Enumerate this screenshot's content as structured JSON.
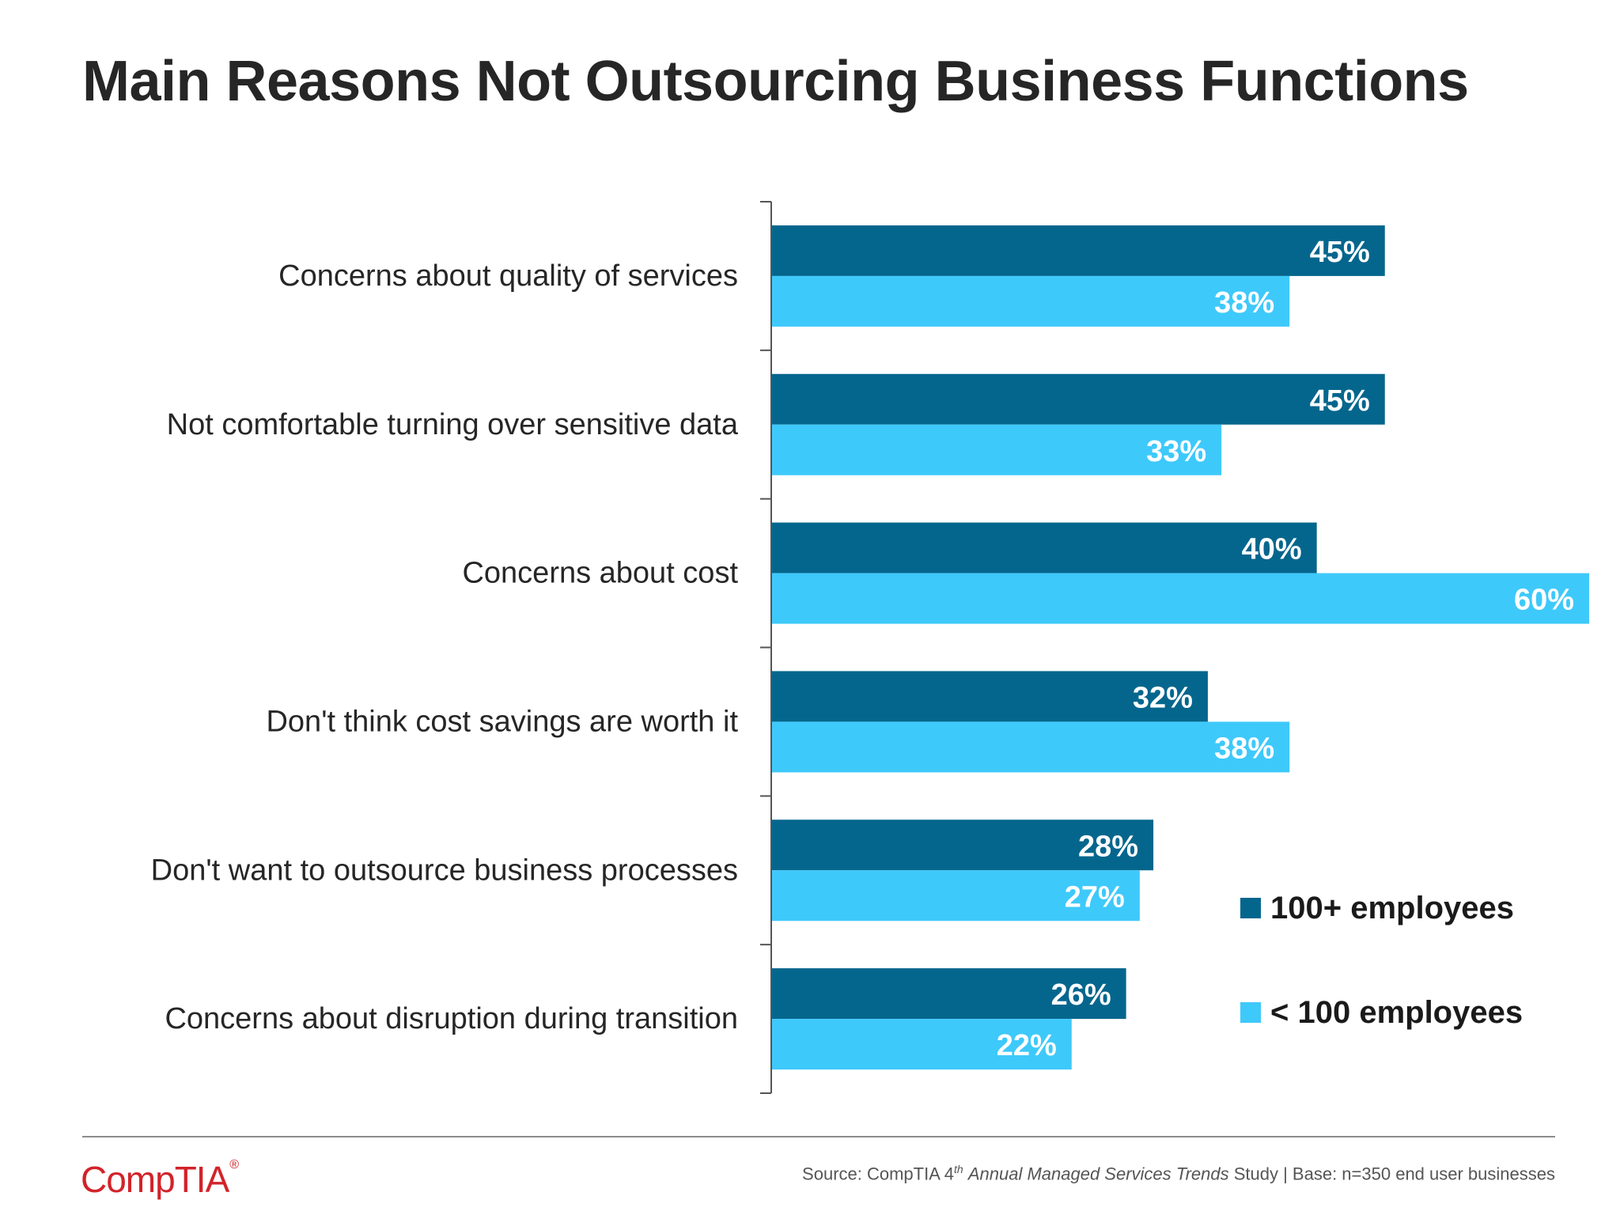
{
  "title": "Main Reasons Not Outsourcing Business Functions",
  "colors": {
    "series_large": "#05668d",
    "series_small": "#3ec9fb",
    "axis": "#555555",
    "brand": "#d2232a"
  },
  "legend": {
    "large_label": "100+ employees",
    "small_label": "< 100 employees"
  },
  "source": {
    "prefix": "Source: CompTIA 4",
    "superscript": "th",
    "italic_title": "Annual Managed Services Trends",
    "suffix": " Study | Base: n=350 end user businesses"
  },
  "logo": {
    "text": "CompTIA",
    "mark": "®"
  },
  "chart_data": {
    "type": "bar",
    "orientation": "horizontal",
    "categories": [
      "Concerns about quality of services",
      "Not comfortable turning over sensitive data",
      "Concerns about cost",
      "Don't think cost savings are worth it",
      "Don't want to outsource business processes",
      "Concerns about disruption during transition"
    ],
    "series": [
      {
        "name": "100+ employees",
        "values": [
          45,
          45,
          40,
          32,
          28,
          26
        ],
        "labels": [
          "45%",
          "45%",
          "40%",
          "32%",
          "28%",
          "26%"
        ]
      },
      {
        "name": "< 100 employees",
        "values": [
          38,
          33,
          60,
          38,
          27,
          22
        ],
        "labels": [
          "38%",
          "33%",
          "60%",
          "38%",
          "27%",
          "22%"
        ]
      }
    ],
    "xlim": [
      0,
      60
    ],
    "grid": false,
    "legend_position": "bottom-right"
  }
}
